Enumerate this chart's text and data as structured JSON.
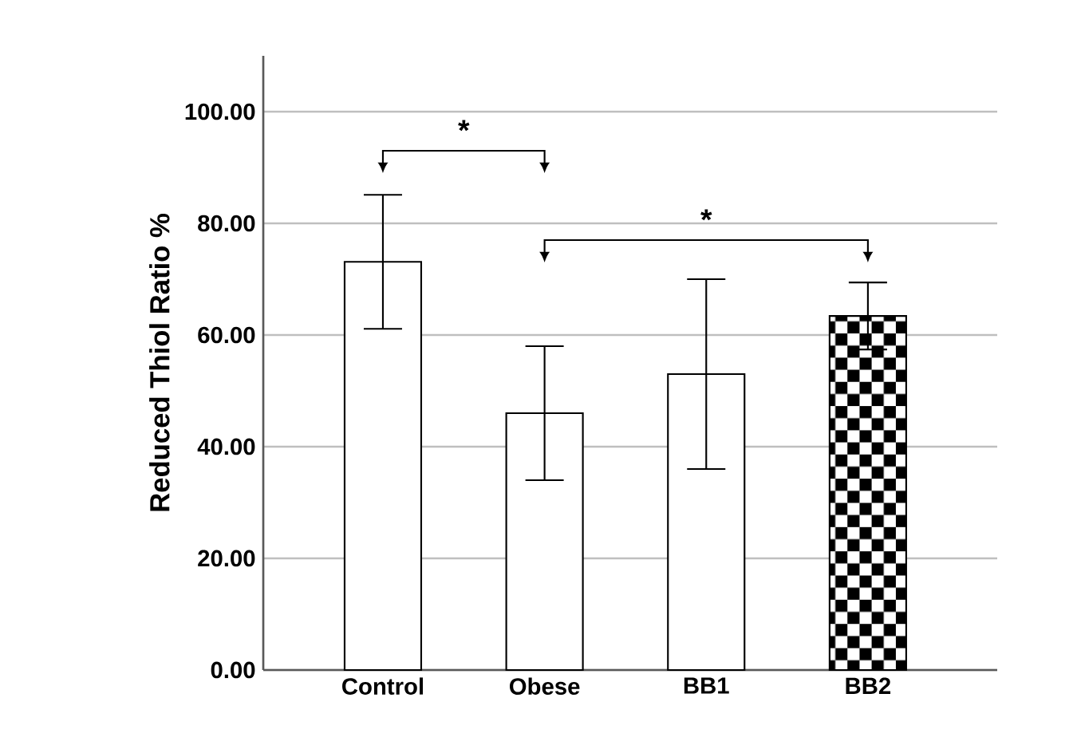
{
  "chart_data": {
    "type": "bar",
    "ylabel": "Reduced Thiol Ratio %",
    "categories": [
      "Control",
      "Obese",
      "BB1",
      "BB2"
    ],
    "values": [
      73.1,
      46.0,
      53.0,
      63.4
    ],
    "errors": [
      12,
      12,
      17,
      6
    ],
    "color": "#ffffff",
    "ylim": [
      0,
      110
    ],
    "yticks": [
      {
        "value": 0,
        "label": "0.00"
      },
      {
        "value": 20,
        "label": "20.00"
      },
      {
        "value": 40,
        "label": "40.00"
      },
      {
        "value": 60,
        "label": "60.00"
      },
      {
        "value": 80,
        "label": "80.00"
      },
      {
        "value": 100,
        "label": "100.00"
      }
    ],
    "grid": "y",
    "annotations": [
      "*",
      "*"
    ]
  }
}
